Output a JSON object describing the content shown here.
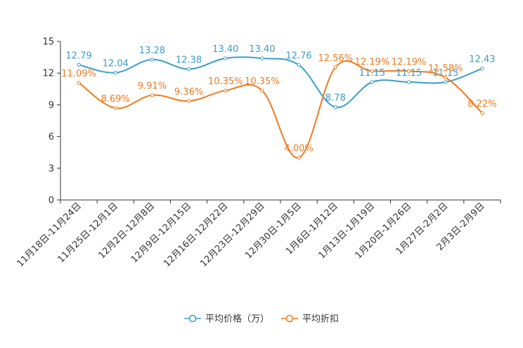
{
  "chart_data": {
    "type": "line",
    "title": "",
    "xlabel": "",
    "ylabel": "",
    "ylim": [
      0,
      15
    ],
    "yticks": [
      0,
      3,
      6,
      9,
      12,
      15
    ],
    "grid": false,
    "legend_position": "bottom-center",
    "categories": [
      "11月18日-11月24日",
      "11月25日-12月1日",
      "12月2日-12月8日",
      "12月9日-12月15日",
      "12月16日-12月22日",
      "12月23日-12月29日",
      "12月30日-1月5日",
      "1月6日-1月12日",
      "1月13日-1月19日",
      "1月20日-1月26日",
      "1月27日-2月2日",
      "2月3日-2月9日"
    ],
    "series": [
      {
        "name": "平均价格（万）",
        "color": "#3a9dcb",
        "values": [
          12.79,
          12.04,
          13.28,
          12.38,
          13.4,
          13.4,
          12.76,
          8.78,
          11.15,
          11.15,
          11.15,
          12.43
        ],
        "labels": [
          "12.79",
          "12.04",
          "13.28",
          "12.38",
          "13.40",
          "13.40",
          "12.76",
          "8.78",
          "11.15",
          "11.15",
          "11.15",
          "12.43"
        ]
      },
      {
        "name": "平均折扣",
        "color": "#f07a1b",
        "values": [
          11.09,
          8.69,
          9.91,
          9.36,
          10.35,
          10.35,
          4.0,
          12.56,
          12.19,
          12.19,
          11.58,
          8.22
        ],
        "labels": [
          "11.09%",
          "8.69%",
          "9.91%",
          "9.36%",
          "10.35%",
          "10.35%",
          "4.00%",
          "12.56%",
          "12.19%",
          "12.19%",
          "11.58%",
          "8.22%"
        ]
      }
    ]
  }
}
